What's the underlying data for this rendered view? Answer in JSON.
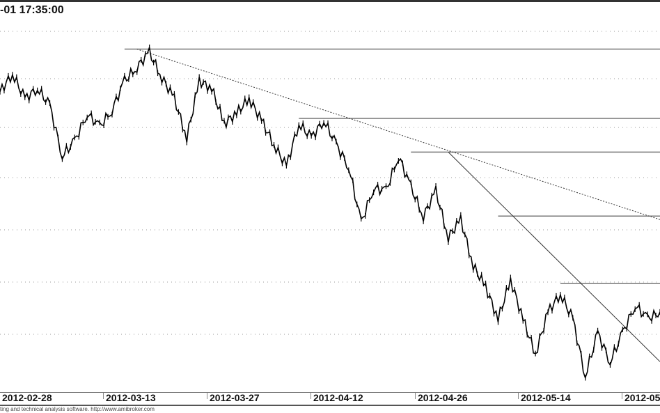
{
  "title": "-01 17:35:00",
  "footer": "ting and technical analysis software. http://www.amibroker.com",
  "chart_data": {
    "type": "line",
    "style": "price bars, no y-axis labels shown",
    "grid": "horizontal dotted",
    "x_tick_labels": [
      "2012-02-28",
      "2012-03-13",
      "2012-03-27",
      "2012-04-12",
      "2012-04-26",
      "2012-05-14",
      "2012-05"
    ],
    "ylim": [
      0,
      100
    ],
    "values": [
      83,
      88,
      81,
      84,
      79,
      65,
      69,
      77,
      73,
      78,
      86,
      90,
      94,
      87,
      81,
      70,
      86,
      84,
      74,
      77,
      81,
      75,
      68,
      62,
      74,
      70,
      75,
      68,
      62,
      46,
      56,
      55,
      65,
      56,
      48,
      55,
      42,
      47,
      34,
      28,
      19,
      30,
      19,
      9,
      21,
      26,
      19,
      3,
      15,
      7,
      15,
      23,
      19,
      21
    ],
    "horizontal_levels": [
      {
        "value": 95,
        "from_index": 10
      },
      {
        "value": 75.5,
        "from_index": 24
      },
      {
        "value": 66,
        "from_index": 33
      },
      {
        "value": 48,
        "from_index": 40
      },
      {
        "value": 29,
        "from_index": 45
      }
    ],
    "trendlines": [
      {
        "style": "dotted",
        "from": [
          11,
          95
        ],
        "to": [
          53,
          47
        ]
      },
      {
        "style": "solid",
        "from": [
          36,
          66
        ],
        "to": [
          53,
          7
        ]
      }
    ],
    "colors": {
      "price": "#000000",
      "levels": "#777777",
      "grid": "#999999"
    }
  }
}
